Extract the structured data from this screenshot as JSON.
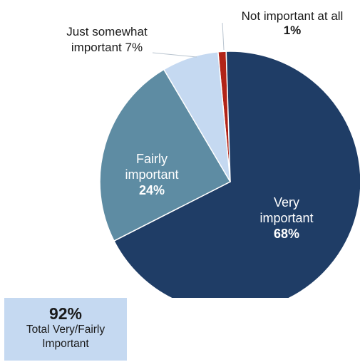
{
  "chart_data": {
    "type": "pie",
    "slices": [
      {
        "label_lines": [
          "Not important at all",
          "1%"
        ],
        "value": 1,
        "color": "#b22418"
      },
      {
        "label_lines": [
          "Very",
          "important",
          "68%"
        ],
        "value": 68,
        "color": "#1f3d66"
      },
      {
        "label_lines": [
          "Fairly",
          "important",
          "24%"
        ],
        "value": 24,
        "color": "#5e8ca3"
      },
      {
        "label_lines": [
          "Just somewhat",
          "important 7%"
        ],
        "value": 7,
        "color": "#c5d9f1"
      }
    ]
  },
  "summary": {
    "value": "92%",
    "label": "Total Very/Fairly Important"
  }
}
